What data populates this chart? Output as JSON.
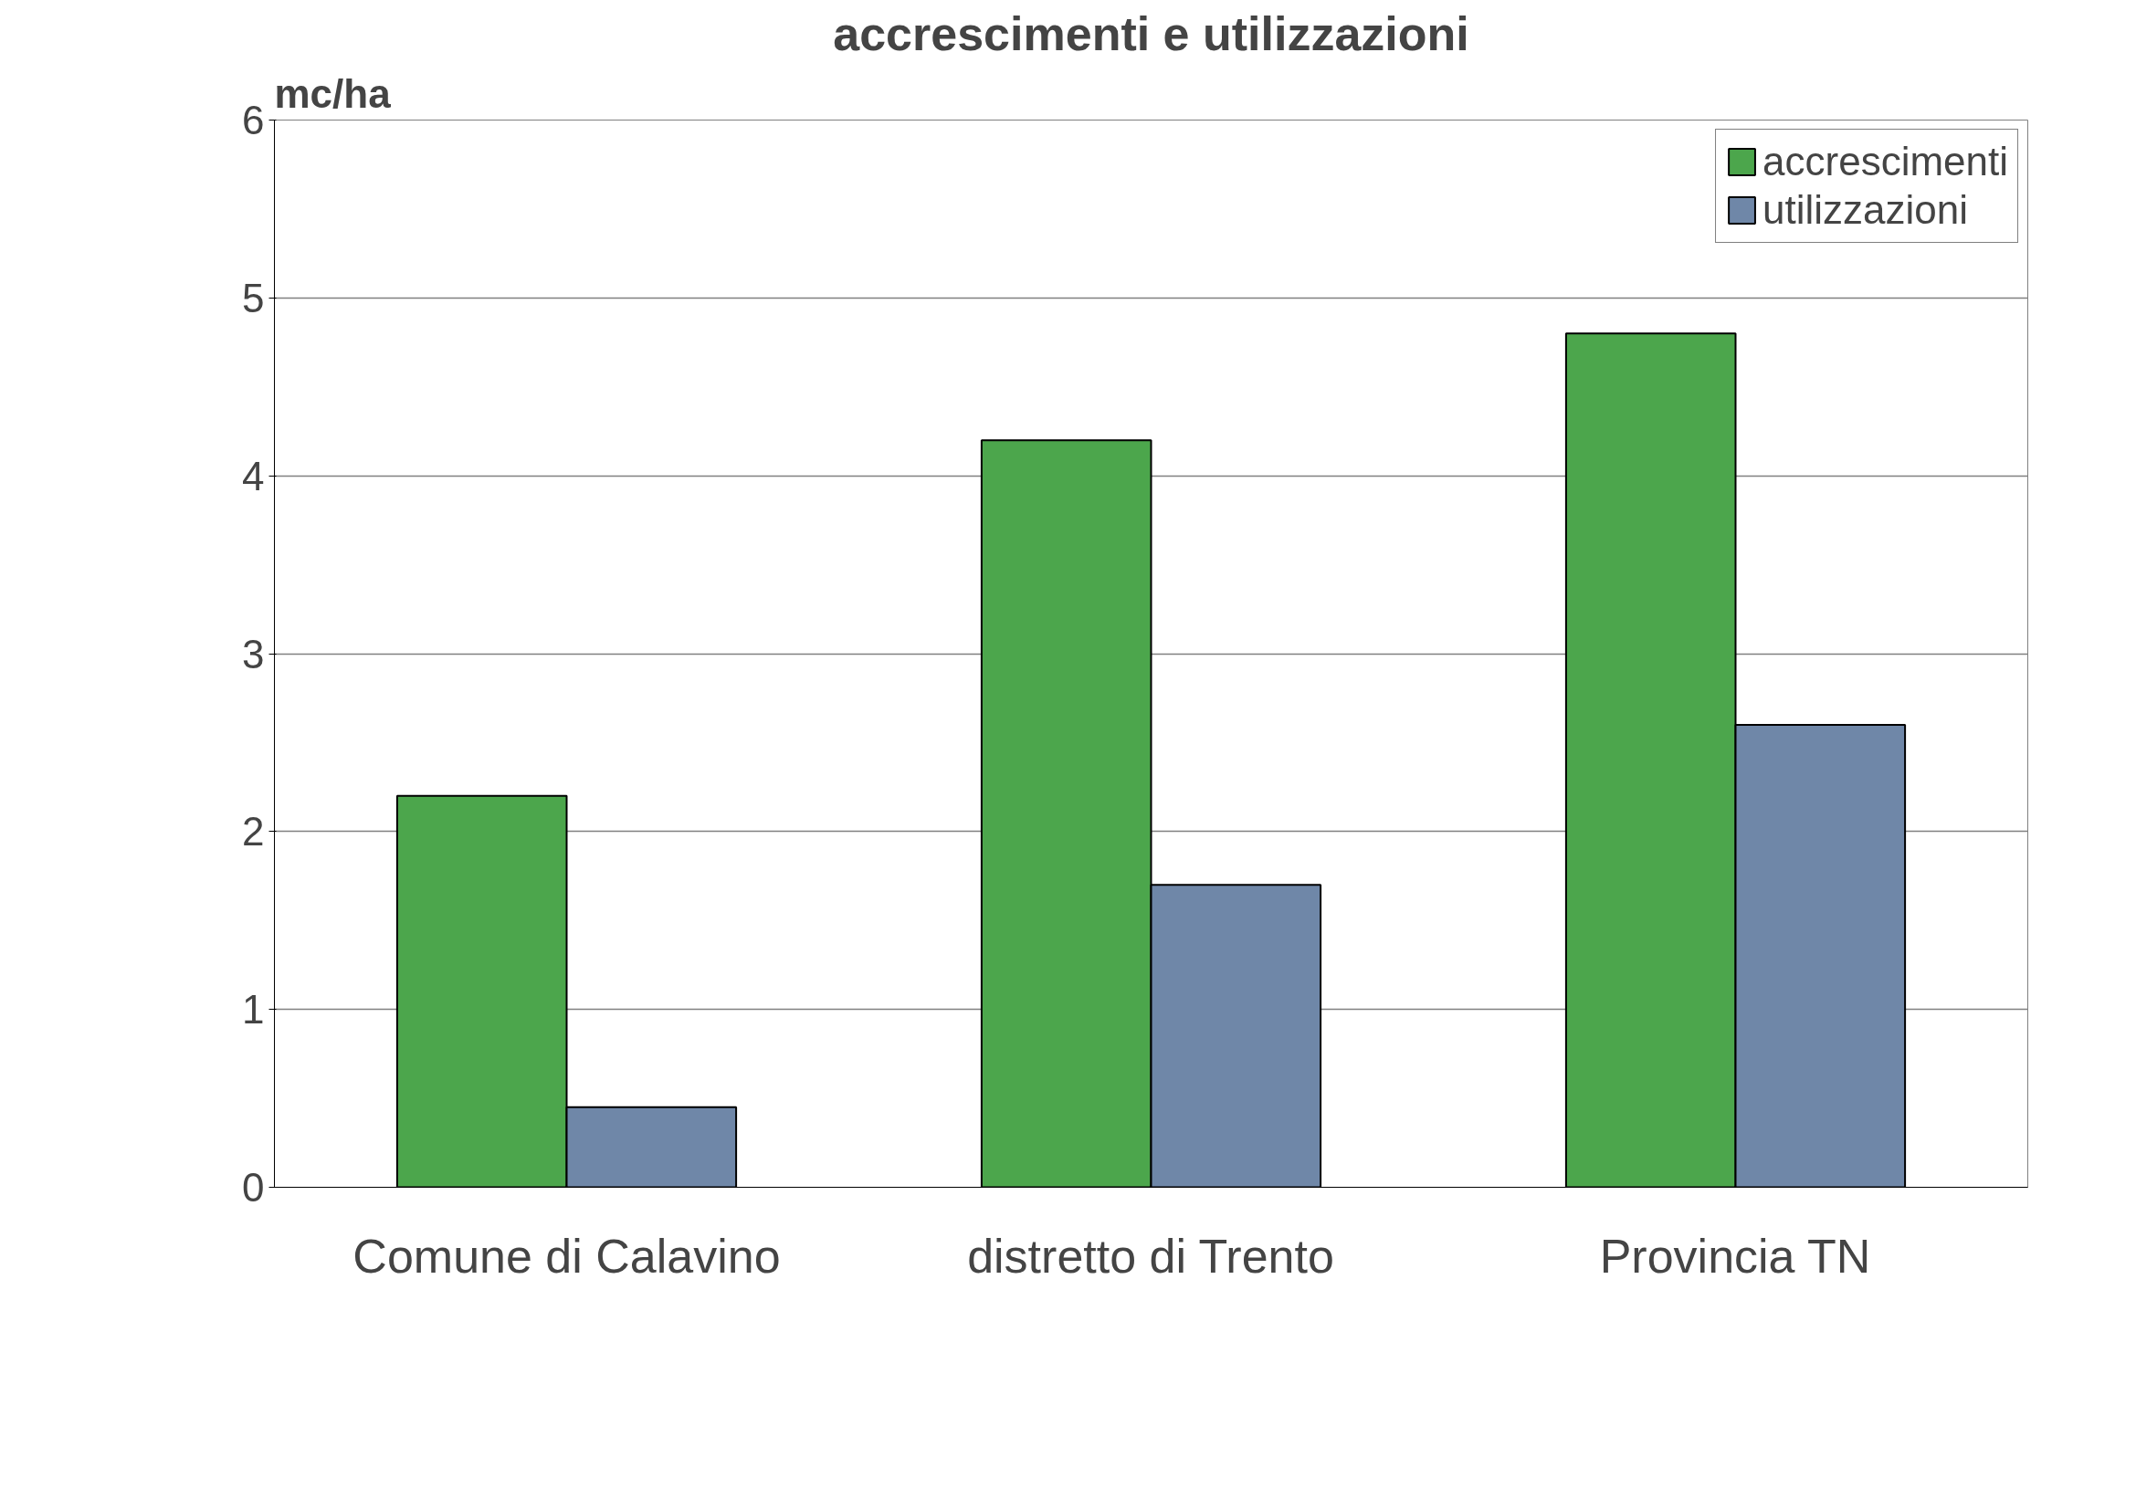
{
  "chart_data": {
    "type": "bar",
    "title": "accrescimenti e utilizzazioni",
    "ylabel": "mc/ha",
    "categories": [
      "Comune di Calavino",
      "distretto di Trento",
      "Provincia TN"
    ],
    "series": [
      {
        "name": "accrescimenti",
        "color": "#4ca64c",
        "values": [
          2.2,
          4.2,
          4.8
        ]
      },
      {
        "name": "utilizzazioni",
        "color": "#6f87a8",
        "values": [
          0.45,
          1.7,
          2.6
        ]
      }
    ],
    "ylim": [
      0,
      6
    ],
    "yticks": [
      0,
      1,
      2,
      3,
      4,
      5,
      6
    ],
    "grid": "y",
    "legend": "top right"
  }
}
